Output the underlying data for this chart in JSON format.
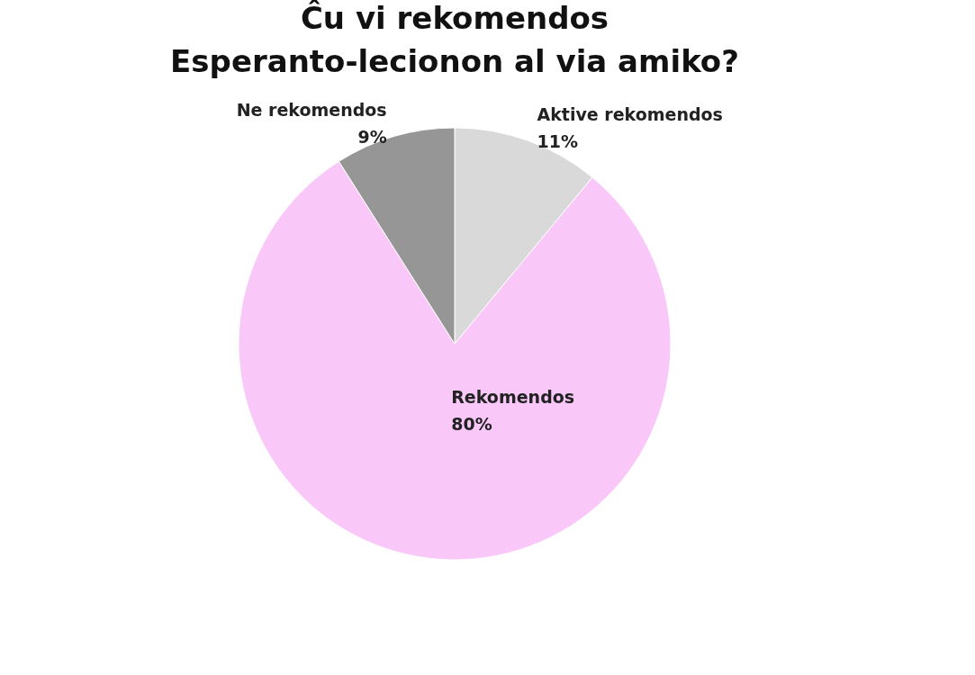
{
  "chart_data": {
    "type": "pie",
    "title": "Ĉu vi rekomendos\nEsperanto-lecionon al via amiko?",
    "categories": [
      "Aktive rekomendos",
      "Rekomendos",
      "Ne rekomendos"
    ],
    "values": [
      11,
      80,
      9
    ],
    "value_labels": [
      "11%",
      "80%",
      "9%"
    ],
    "colors": [
      "#d9d9d9",
      "#f9c8f9",
      "#969696"
    ],
    "legend": false
  }
}
